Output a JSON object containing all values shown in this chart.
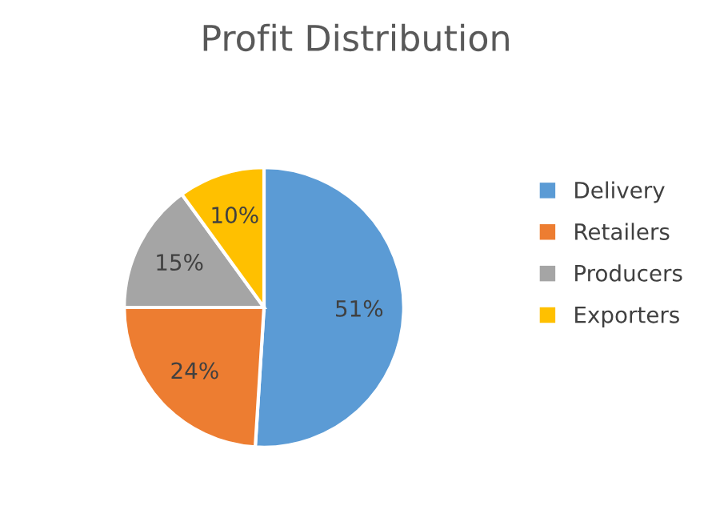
{
  "chart_data": {
    "type": "pie",
    "title": "Profit Distribution",
    "categories": [
      "Delivery",
      "Retailers",
      "Producers",
      "Exporters"
    ],
    "values": [
      51,
      24,
      15,
      10
    ],
    "colors": [
      "#5b9bd5",
      "#ed7d31",
      "#a5a5a5",
      "#ffc000"
    ],
    "value_labels": [
      "51%",
      "24%",
      "15%",
      "10%"
    ],
    "legend": "right"
  }
}
